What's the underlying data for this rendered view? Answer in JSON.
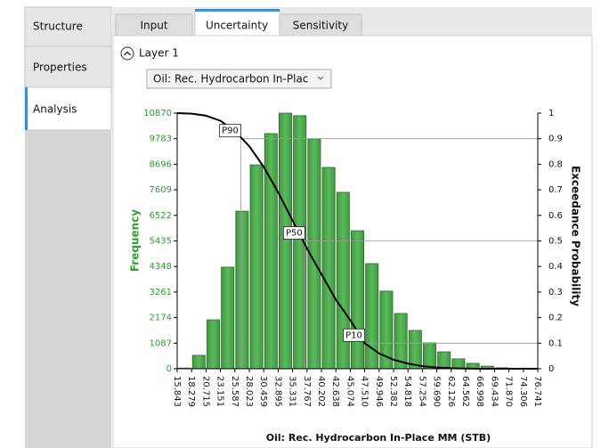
{
  "sidebar": {
    "tabs": [
      "Structure",
      "Properties",
      "Analysis"
    ]
  },
  "tabs": [
    "Input",
    "Uncertainty",
    "Sensitivity"
  ],
  "layer": "Layer 1",
  "dropdown": "Oil: Rec. Hydrocarbon In-Plac",
  "chart_data": {
    "type": "histogram",
    "x_label": "Oil: Rec. Hydrocarbon In-Place MM (STB)",
    "y_label": "Frequency",
    "y2_label": "Exceedance Probability",
    "color": "#5cb85c",
    "bins": [
      15.843,
      18.279,
      20.715,
      23.151,
      25.587,
      28.023,
      30.459,
      32.895,
      35.331,
      37.767,
      40.202,
      42.638,
      45.074,
      47.51,
      49.946,
      52.382,
      54.818,
      57.254,
      59.69,
      62.126,
      64.562,
      66.998,
      69.434,
      71.87,
      74.306,
      76.741
    ],
    "values": [
      30,
      570,
      2080,
      4320,
      6700,
      8670,
      10000,
      10870,
      10760,
      9770,
      8560,
      7500,
      5870,
      4470,
      3300,
      2350,
      1630,
      1100,
      720,
      420,
      230,
      110,
      40,
      20,
      10
    ],
    "xlim": [
      15.843,
      76.741
    ],
    "xticks": [
      15.843,
      18.279,
      20.715,
      23.151,
      25.587,
      28.023,
      30.459,
      32.895,
      35.331,
      37.767,
      40.202,
      42.638,
      45.074,
      {
        "value": 47.51,
        "label": "47.510"
      },
      49.946,
      52.382,
      54.818,
      57.254,
      {
        "value": 59.69,
        "label": "59.690"
      },
      62.126,
      64.562,
      66.998,
      69.434,
      {
        "value": 71.87,
        "label": "71.870"
      },
      74.306,
      76.741
    ],
    "ylim": [
      0,
      10870
    ],
    "yticks": [
      0,
      1087,
      2174,
      3261,
      4348,
      5435,
      6522,
      7609,
      8696,
      9783,
      10870
    ],
    "y2lim": [
      0,
      1
    ],
    "y2ticks": [
      0,
      0.1,
      0.2,
      0.3,
      0.4,
      0.5,
      0.6,
      0.7,
      0.8,
      0.9,
      1
    ],
    "curve": {
      "axis": "y2",
      "color": "#000000",
      "x": [
        15.843,
        18.279,
        20.715,
        23.151,
        25.587,
        28.023,
        30.459,
        32.895,
        35.331,
        37.767,
        40.202,
        42.638,
        45.074,
        47.51,
        49.946,
        52.382,
        54.818,
        57.254,
        59.69,
        62.126,
        64.562,
        66.998,
        76.741
      ],
      "values": [
        1,
        0.998,
        0.99,
        0.97,
        0.93,
        0.87,
        0.79,
        0.69,
        0.58,
        0.47,
        0.37,
        0.27,
        0.19,
        0.1,
        0.06,
        0.035,
        0.02,
        0.01,
        0.005,
        0.002,
        0.001,
        0,
        0
      ]
    },
    "percentiles": [
      {
        "label": "P90",
        "x": 26.6,
        "y": 0.9
      },
      {
        "label": "P50",
        "x": 37.4,
        "y": 0.5
      },
      {
        "label": "P10",
        "x": 47.5,
        "y": 0.1
      }
    ]
  }
}
